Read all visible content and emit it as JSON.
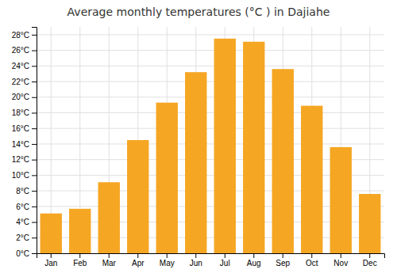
{
  "chart_data": {
    "type": "bar",
    "title": "Average monthly temperatures (°C ) in Dajiahe",
    "categories": [
      "Jan",
      "Feb",
      "Mar",
      "Apr",
      "May",
      "Jun",
      "Jul",
      "Aug",
      "Sep",
      "Oct",
      "Nov",
      "Dec"
    ],
    "values": [
      5.1,
      5.7,
      9.1,
      14.5,
      19.3,
      23.2,
      27.5,
      27.1,
      23.6,
      18.9,
      13.6,
      7.6
    ],
    "color": "#F5A623",
    "ylim": [
      0,
      29
    ],
    "yticks": [
      {
        "value": 0,
        "label": "0°C"
      },
      {
        "value": 2,
        "label": "2°C"
      },
      {
        "value": 4,
        "label": "4°C"
      },
      {
        "value": 6,
        "label": "6°C"
      },
      {
        "value": 8,
        "label": "8°C"
      },
      {
        "value": 10,
        "label": "10°C"
      },
      {
        "value": 12,
        "label": "12°C"
      },
      {
        "value": 14,
        "label": "14°C"
      },
      {
        "value": 16,
        "label": "16°C"
      },
      {
        "value": 18,
        "label": "18°C"
      },
      {
        "value": 20,
        "label": "20°C"
      },
      {
        "value": 22,
        "label": "22°C"
      },
      {
        "value": 24,
        "label": "24°C"
      },
      {
        "value": 26,
        "label": "26°C"
      },
      {
        "value": 28,
        "label": "28°C"
      }
    ],
    "grid": true
  }
}
